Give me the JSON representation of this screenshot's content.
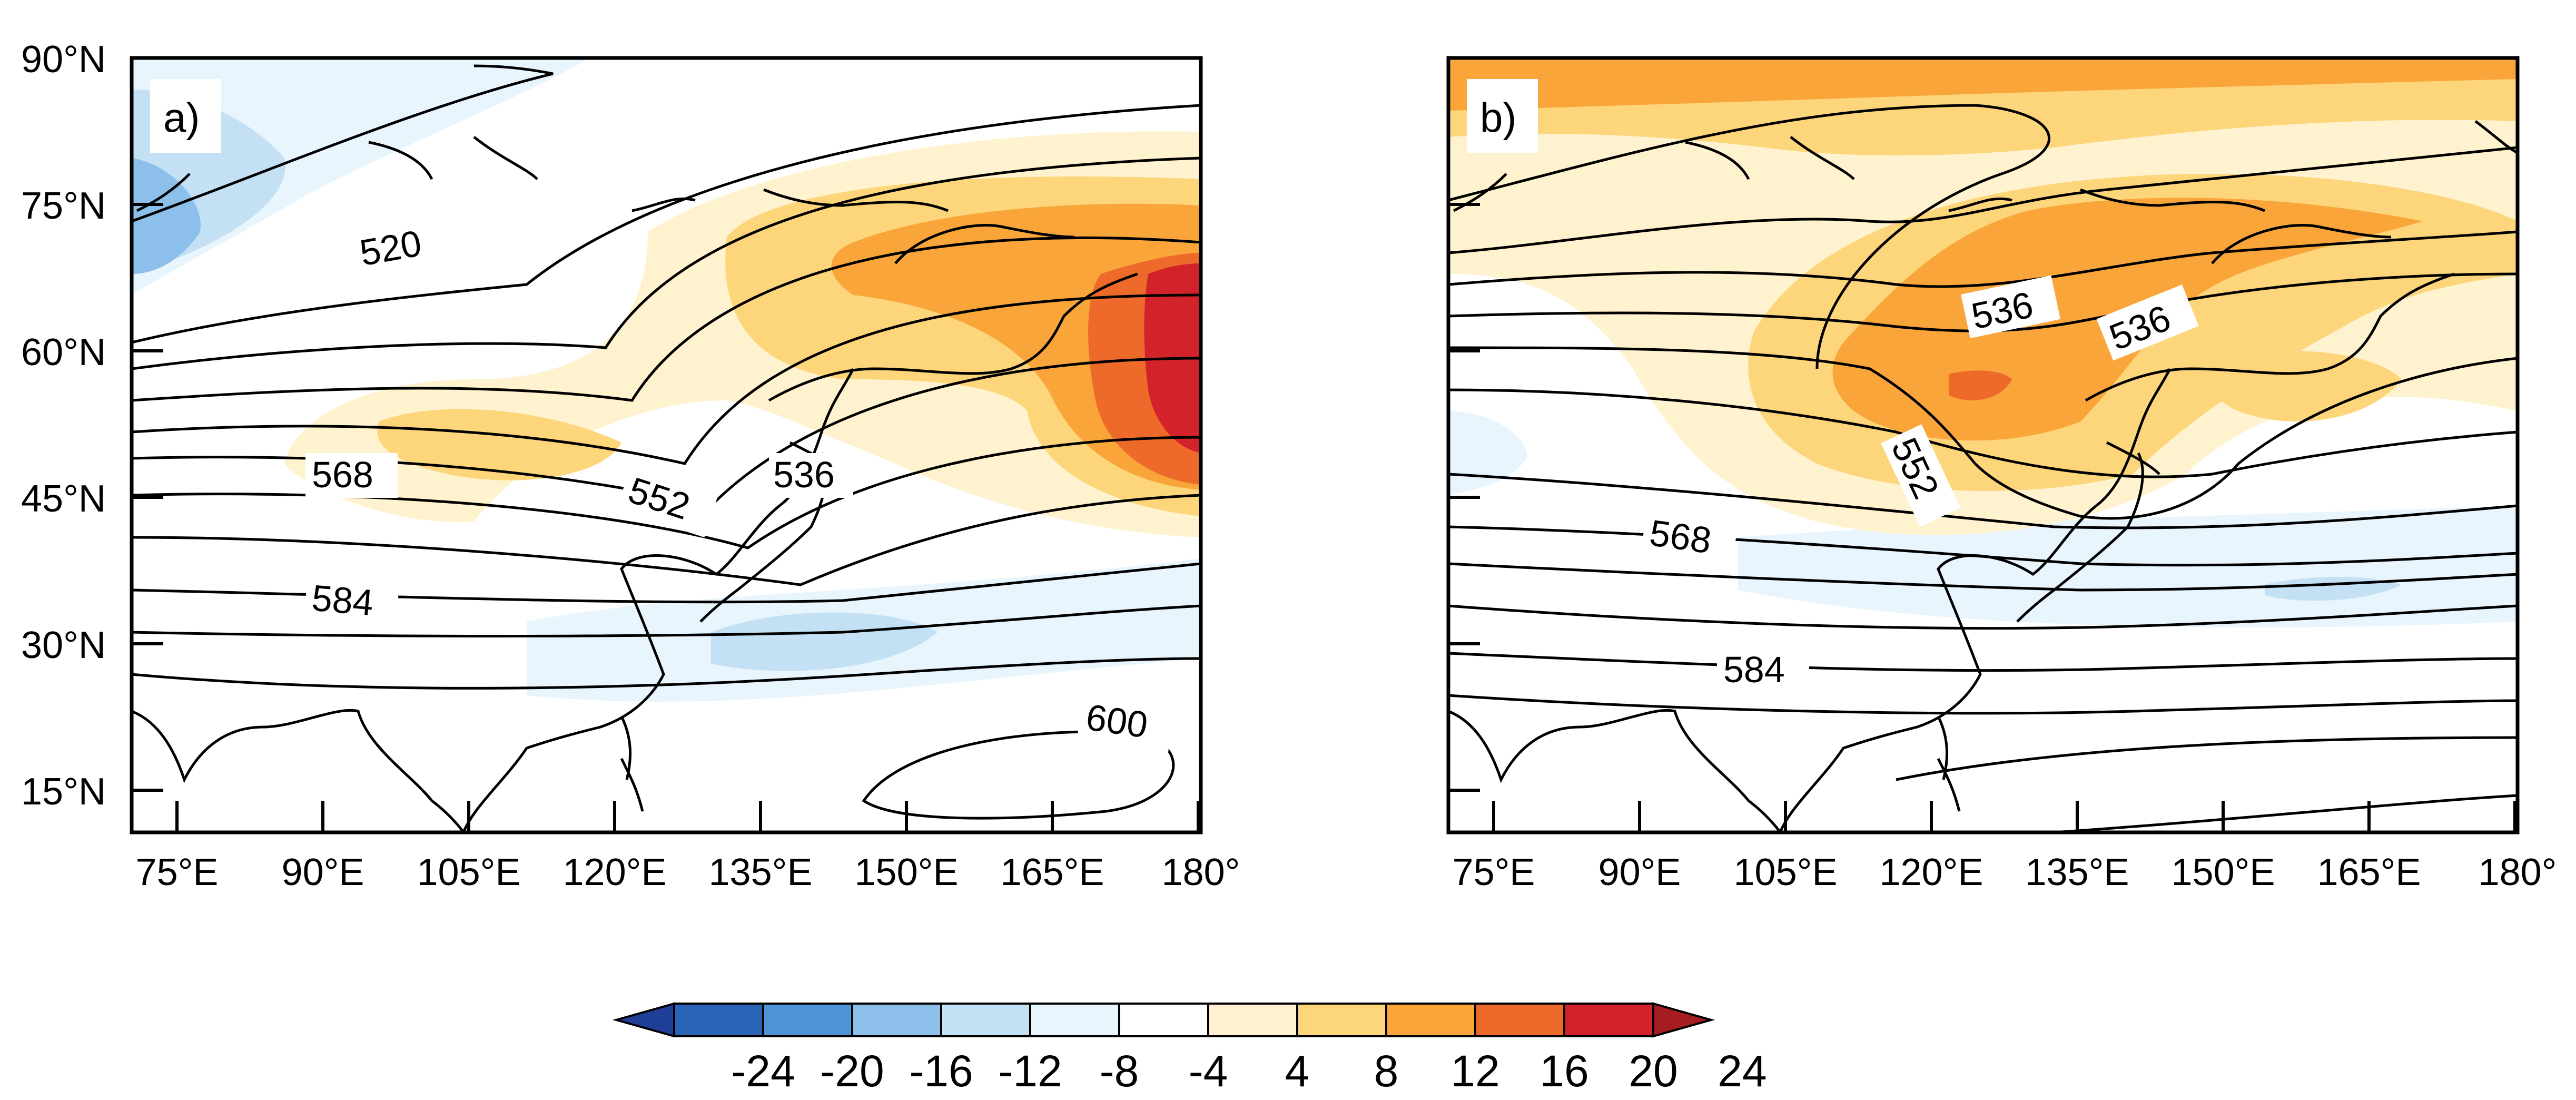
{
  "panels": [
    {
      "label": "a)",
      "contour_labels": [
        "520",
        "568",
        "552",
        "536",
        "584",
        "600"
      ]
    },
    {
      "label": "b)",
      "contour_labels": [
        "536",
        "536",
        "552",
        "568",
        "584"
      ]
    }
  ],
  "axes": {
    "lat_ticks": [
      "90°N",
      "75°N",
      "60°N",
      "45°N",
      "30°N",
      "15°N"
    ],
    "lon_ticks": [
      "75°E",
      "90°E",
      "105°E",
      "120°E",
      "135°E",
      "150°E",
      "165°E",
      "180°"
    ]
  },
  "colorbar": {
    "levels": [
      "-24",
      "-20",
      "-16",
      "-12",
      "-8",
      "-4",
      "4",
      "8",
      "12",
      "16",
      "20",
      "24"
    ],
    "colors": [
      "#1f3f96",
      "#2a64b6",
      "#4f94d6",
      "#8cc0ea",
      "#c3e0f5",
      "#e9f5fd",
      "#ffffff",
      "#fff3cf",
      "#fdd57a",
      "#f9a53a",
      "#ee6a2a",
      "#d2232a",
      "#a51c21"
    ]
  }
}
